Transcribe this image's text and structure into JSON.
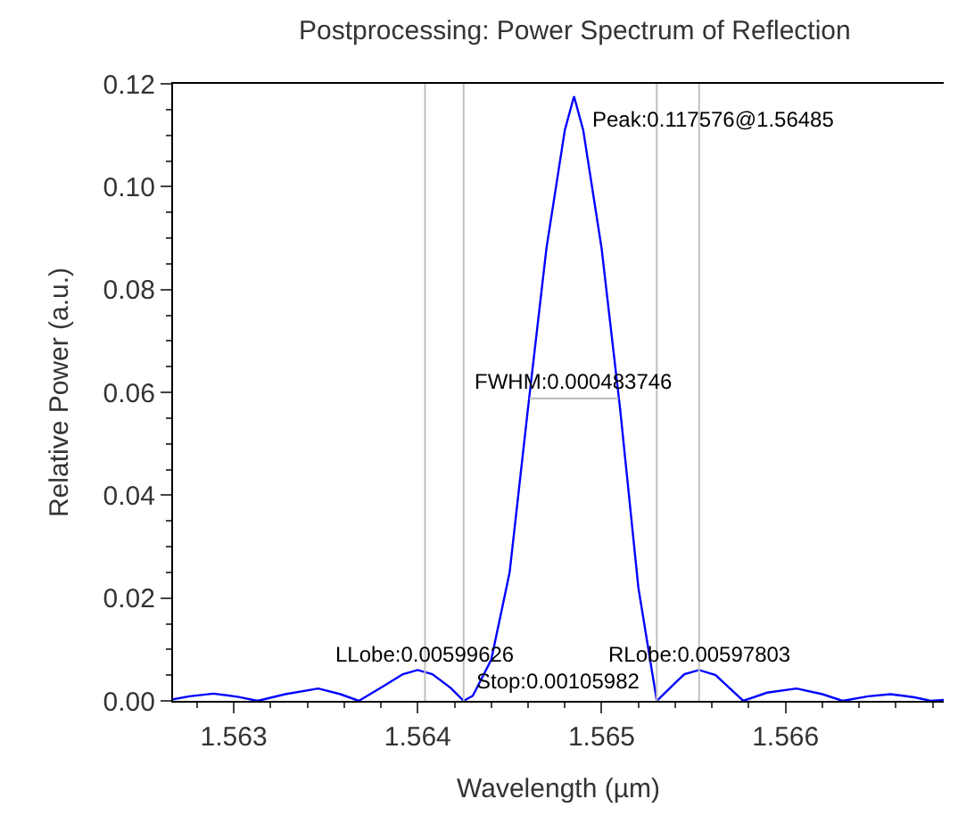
{
  "chart_data": {
    "type": "line",
    "title": "Postprocessing: Power Spectrum of Reflection",
    "xlabel": "Wavelength (µm)",
    "ylabel": "Relative Power (a.u.)",
    "xlim": [
      1.56267,
      1.56686
    ],
    "xticks": [
      1.563,
      1.564,
      1.565,
      1.566
    ],
    "ylim": [
      0,
      0.12
    ],
    "yticks": [
      {
        "value": 0,
        "label": "0.00"
      },
      {
        "value": 0.02,
        "label": "0.02"
      },
      {
        "value": 0.04,
        "label": "0.04"
      },
      {
        "value": 0.06,
        "label": "0.06"
      },
      {
        "value": 0.08,
        "label": "0.08"
      },
      {
        "value": 0.1,
        "label": "0.10"
      },
      {
        "value": 0.12,
        "label": "0.12"
      }
    ],
    "marker": "none",
    "line_style": "solid",
    "series": [
      {
        "color": "#0000ff",
        "x": [
          1.56267,
          1.56276,
          1.56289,
          1.56302,
          1.56313,
          1.56328,
          1.56346,
          1.56358,
          1.56368,
          1.56382,
          1.56392,
          1.564,
          1.56408,
          1.56418,
          1.56425,
          1.5643,
          1.5644,
          1.5645,
          1.5646,
          1.5647,
          1.5648,
          1.56485,
          1.5649,
          1.565,
          1.5651,
          1.5652,
          1.5653,
          1.5654,
          1.56545,
          1.56553,
          1.56562,
          1.56577,
          1.5659,
          1.56606,
          1.5662,
          1.56631,
          1.56645,
          1.56657,
          1.5667,
          1.56679,
          1.56686
        ],
        "values": [
          0.0003,
          0.0009,
          0.0014,
          0.0008,
          0.0,
          0.0013,
          0.0024,
          0.0013,
          0.0,
          0.003,
          0.0052,
          0.006,
          0.0052,
          0.0025,
          0.0,
          0.001,
          0.008,
          0.025,
          0.057,
          0.088,
          0.111,
          0.117576,
          0.111,
          0.088,
          0.057,
          0.022,
          0.0,
          0.0035,
          0.0052,
          0.006,
          0.005,
          0.0,
          0.0016,
          0.0024,
          0.0013,
          0.0,
          0.0009,
          0.0013,
          0.0007,
          0.0,
          0.0002
        ]
      },
      {
        "color": "#c0c0c0",
        "x": [
          1.564608,
          1.565092
        ],
        "values": [
          0.0588,
          0.0588
        ]
      }
    ],
    "ref_lines": [
      {
        "axis": "x",
        "value": 1.56404,
        "color": "#c0c0c0"
      },
      {
        "axis": "x",
        "value": 1.56425,
        "color": "#c0c0c0"
      },
      {
        "axis": "x",
        "value": 1.5653,
        "color": "#c0c0c0"
      },
      {
        "axis": "x",
        "value": 1.56553,
        "color": "#c0c0c0"
      }
    ],
    "annotations": [
      {
        "text": "Peak:0.117576@1.56485",
        "x": 1.56485,
        "y": 0.117576
      },
      {
        "text": "FWHM:0.000483746",
        "x": 1.56485,
        "y": 0.0588
      },
      {
        "text": "LLobe:0.00599626",
        "x": 1.56404,
        "y": 0.006
      },
      "Stop:0.00105982",
      {
        "text": "RLobe:0.00597803",
        "x": 1.56553,
        "y": 0.006
      }
    ]
  }
}
